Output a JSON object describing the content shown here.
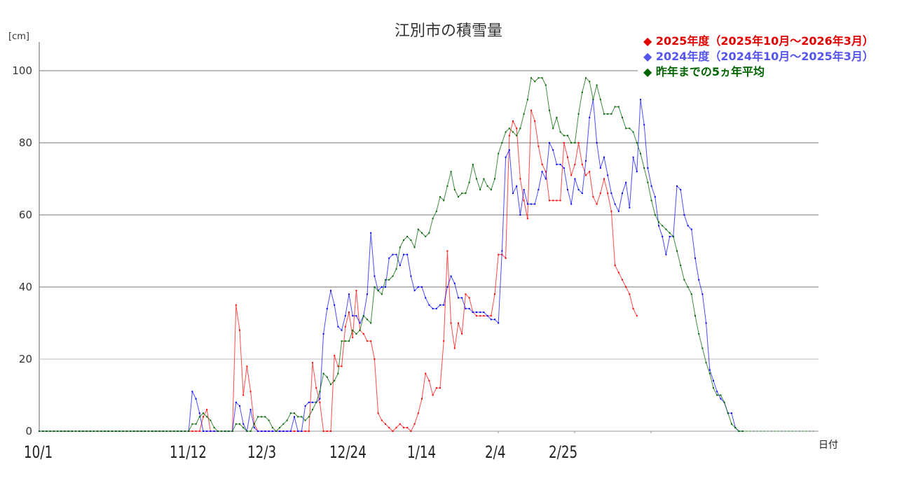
{
  "chart_data": {
    "type": "line",
    "title": "江別市の積雪量",
    "ylabel": "[cm]",
    "xlabel": "日付",
    "ylim": [
      0,
      110
    ],
    "yticks": [
      0,
      20,
      40,
      60,
      80,
      100
    ],
    "x_tick_labels": [
      "10/1",
      "11/12",
      "12/3",
      "12/24",
      "1/14",
      "2/4",
      "2/25"
    ],
    "x_start": "10/1",
    "legend_position": "top-right",
    "grid": true,
    "series": [
      {
        "name": "2025年度（2025年10月～2026年3月）",
        "color": "#ff0000",
        "values": [
          0,
          0,
          0,
          0,
          0,
          0,
          0,
          0,
          0,
          0,
          0,
          0,
          0,
          0,
          0,
          0,
          0,
          0,
          0,
          0,
          0,
          0,
          0,
          0,
          0,
          0,
          0,
          0,
          0,
          0,
          0,
          0,
          0,
          0,
          0,
          0,
          0,
          0,
          0,
          0,
          0,
          0,
          0,
          0,
          0,
          4,
          6,
          0,
          0,
          0,
          0,
          0,
          0,
          0,
          35,
          28,
          10,
          18,
          11,
          2,
          0,
          0,
          0,
          0,
          0,
          0,
          0,
          0,
          0,
          0,
          0,
          0,
          0,
          0,
          0,
          19,
          12,
          8,
          0,
          0,
          0,
          21,
          18,
          18,
          29,
          33,
          26,
          39,
          28,
          27,
          25,
          25,
          20,
          5,
          3,
          2,
          1,
          0,
          1,
          2,
          1,
          1,
          0,
          2,
          5,
          9,
          16,
          14,
          10,
          12,
          12,
          25,
          50,
          30,
          23,
          30,
          27,
          38,
          37,
          33,
          32,
          32,
          32,
          32,
          32,
          38,
          49,
          49,
          48,
          82,
          86,
          84,
          70,
          64,
          59,
          89,
          86,
          79,
          74,
          72,
          64,
          64,
          64,
          64,
          80,
          76,
          71,
          74,
          80,
          74,
          71,
          72,
          65,
          63,
          66,
          70,
          66,
          61,
          46,
          44,
          42,
          40,
          38,
          34,
          32
        ]
      },
      {
        "name": "2024年度（2024年10月～2025年3月）",
        "color": "#0000ff",
        "values": [
          0,
          0,
          0,
          0,
          0,
          0,
          0,
          0,
          0,
          0,
          0,
          0,
          0,
          0,
          0,
          0,
          0,
          0,
          0,
          0,
          0,
          0,
          0,
          0,
          0,
          0,
          0,
          0,
          0,
          0,
          0,
          0,
          0,
          0,
          0,
          0,
          0,
          0,
          0,
          0,
          0,
          0,
          11,
          9,
          5,
          0,
          0,
          0,
          0,
          0,
          0,
          0,
          0,
          0,
          8,
          7,
          2,
          0,
          6,
          1,
          0,
          0,
          0,
          0,
          0,
          0,
          0,
          0,
          0,
          0,
          4,
          0,
          0,
          7,
          8,
          8,
          8,
          9,
          27,
          34,
          39,
          35,
          29,
          28,
          32,
          38,
          32,
          32,
          30,
          32,
          38,
          55,
          43,
          39,
          40,
          40,
          48,
          49,
          49,
          46,
          49,
          49,
          43,
          39,
          40,
          40,
          37,
          35,
          34,
          34,
          35,
          35,
          40,
          43,
          41,
          37,
          37,
          34,
          34,
          33,
          33,
          33,
          33,
          32,
          31,
          31,
          30,
          50,
          76,
          78,
          66,
          68,
          60,
          67,
          63,
          63,
          63,
          67,
          72,
          70,
          80,
          78,
          74,
          74,
          73,
          67,
          63,
          70,
          67,
          66,
          75,
          87,
          92,
          80,
          73,
          76,
          71,
          66,
          63,
          61,
          66,
          69,
          62,
          76,
          72,
          92,
          85,
          73,
          68,
          65,
          57,
          54,
          49,
          54,
          54,
          68,
          67,
          60,
          57,
          56,
          48,
          42,
          38,
          30,
          17,
          14,
          11,
          9,
          8,
          5,
          5,
          1,
          0,
          0
        ]
      },
      {
        "name": "昨年までの5ヵ年平均",
        "color": "#006400",
        "values": [
          0,
          0,
          0,
          0,
          0,
          0,
          0,
          0,
          0,
          0,
          0,
          0,
          0,
          0,
          0,
          0,
          0,
          0,
          0,
          0,
          0,
          0,
          0,
          0,
          0,
          0,
          0,
          0,
          0,
          0,
          0,
          0,
          0,
          0,
          0,
          0,
          0,
          0,
          0,
          0,
          0,
          0,
          2,
          2,
          4,
          5,
          4,
          3,
          1,
          0,
          0,
          0,
          0,
          0,
          2,
          2,
          1,
          0,
          0,
          2,
          4,
          4,
          4,
          3,
          1,
          0,
          1,
          2,
          3,
          5,
          5,
          4,
          4,
          3,
          4,
          6,
          8,
          11,
          16,
          15,
          13,
          14,
          16,
          25,
          25,
          25,
          28,
          27,
          28,
          32,
          31,
          30,
          40,
          39,
          38,
          42,
          42,
          43,
          45,
          51,
          53,
          54,
          53,
          51,
          56,
          55,
          54,
          55,
          59,
          61,
          65,
          64,
          68,
          72,
          67,
          65,
          66,
          66,
          69,
          74,
          70,
          67,
          70,
          68,
          67,
          70,
          77,
          80,
          83,
          84,
          83,
          82,
          84,
          88,
          92,
          98,
          97,
          98,
          98,
          96,
          89,
          84,
          87,
          83,
          82,
          82,
          80,
          80,
          88,
          94,
          98,
          97,
          92,
          96,
          92,
          88,
          88,
          88,
          90,
          90,
          87,
          84,
          84,
          83,
          80,
          77,
          73,
          69,
          64,
          60,
          58,
          57,
          56,
          55,
          54,
          50,
          46,
          42,
          40,
          38,
          32,
          27,
          23,
          19,
          16,
          12,
          10,
          10,
          8,
          5,
          2,
          1,
          0,
          0
        ]
      }
    ]
  },
  "header": {
    "title": "江別市の積雪量",
    "unit": "[cm]",
    "x_axis_label": "日付"
  },
  "legend": {
    "items": [
      {
        "marker": "◆",
        "label": "2025年度（2025年10月～2026年3月）",
        "color": "#e00000"
      },
      {
        "marker": "◆",
        "label": "2024年度（2024年10月～2025年3月）",
        "color": "#5555ee"
      },
      {
        "marker": "◆",
        "label": "昨年までの5ヵ年平均",
        "color": "#006400"
      }
    ]
  },
  "axes": {
    "y_ticks": [
      "0",
      "20",
      "40",
      "60",
      "80",
      "100"
    ],
    "x_ticks": [
      "10/1",
      "11/12",
      "12/3",
      "12/24",
      "1/14",
      "2/4",
      "2/25"
    ]
  }
}
